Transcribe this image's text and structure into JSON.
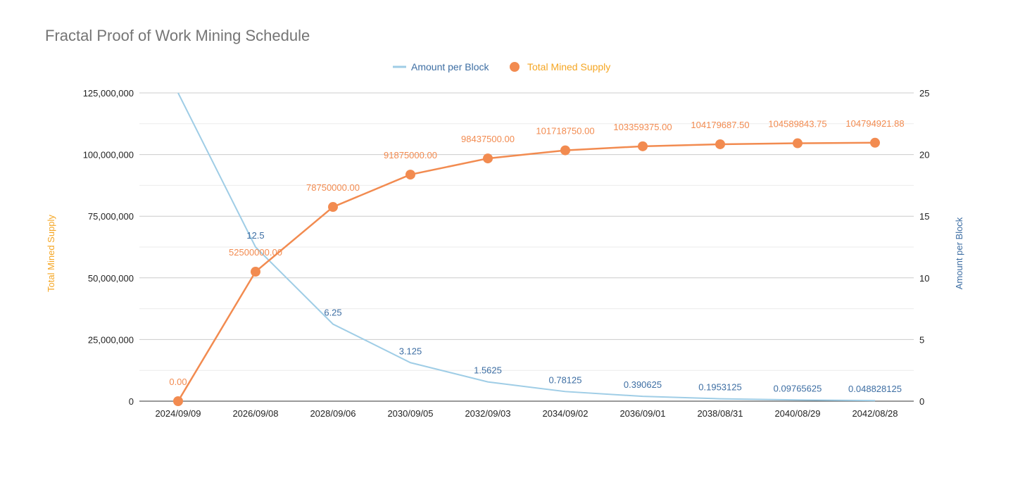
{
  "chart_data": {
    "type": "line",
    "title": "Fractal Proof of Work Mining Schedule",
    "categories": [
      "2024/09/09",
      "2026/09/08",
      "2028/09/06",
      "2030/09/05",
      "2032/09/03",
      "2034/09/02",
      "2036/09/01",
      "2038/08/31",
      "2040/08/29",
      "2042/08/28"
    ],
    "series": [
      {
        "name": "Amount per Block",
        "axis": "right",
        "color": "#9fcde6",
        "label_color": "#3d6ea3",
        "values": [
          25,
          12.5,
          6.25,
          3.125,
          1.5625,
          0.78125,
          0.390625,
          0.1953125,
          0.09765625,
          0.048828125
        ],
        "labels": [
          "",
          "12.5",
          "6.25",
          "3.125",
          "1.5625",
          "0.78125",
          "0.390625",
          "0.1953125",
          "0.09765625",
          "0.048828125"
        ]
      },
      {
        "name": "Total Mined Supply",
        "axis": "left",
        "color": "#f28b50",
        "label_color": "#f28b50",
        "values": [
          0,
          52500000,
          78750000,
          91875000,
          98437500,
          101718750,
          103359375,
          104179687.5,
          104589843.75,
          104794921.88
        ],
        "labels": [
          "0.00",
          "52500000.00",
          "78750000.00",
          "91875000.00",
          "98437500.00",
          "101718750.00",
          "103359375.00",
          "104179687.50",
          "104589843.75",
          "104794921.88"
        ]
      }
    ],
    "left_axis": {
      "title": "Total Mined Supply",
      "title_color": "#f5a623",
      "ylim": [
        0,
        125000000
      ],
      "ticks": [
        0,
        25000000,
        50000000,
        75000000,
        100000000,
        125000000
      ],
      "tick_labels": [
        "0",
        "25,000,000",
        "50,000,000",
        "75,000,000",
        "100,000,000",
        "125,000,000"
      ]
    },
    "right_axis": {
      "title": "Amount per Block",
      "title_color": "#3d6ea3",
      "ylim": [
        0,
        25
      ],
      "ticks": [
        0,
        5,
        10,
        15,
        20,
        25
      ],
      "tick_labels": [
        "0",
        "5",
        "10",
        "15",
        "20",
        "25"
      ]
    },
    "legend": {
      "position": "top-center",
      "entries": [
        {
          "name": "Amount per Block",
          "text_color": "#3d6ea3"
        },
        {
          "name": "Total Mined Supply",
          "text_color": "#f5a623"
        }
      ]
    },
    "grid": true
  }
}
